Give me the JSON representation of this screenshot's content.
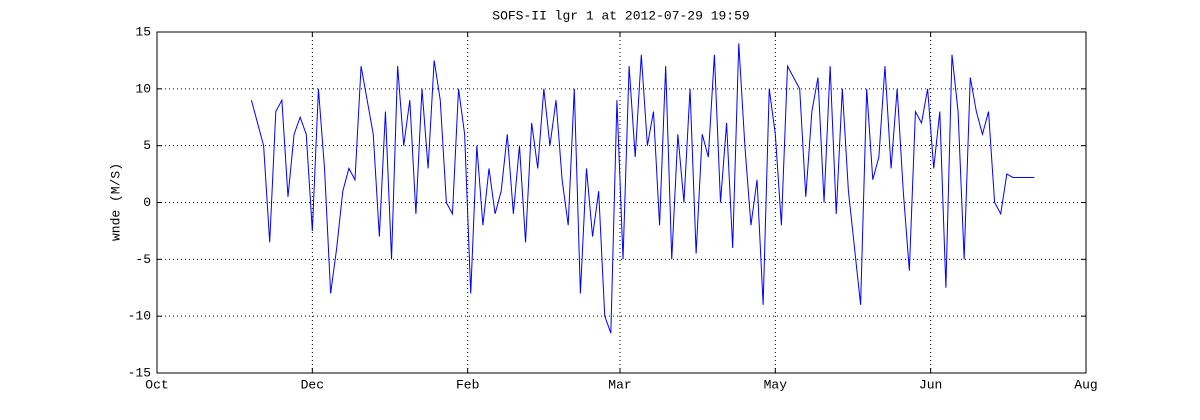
{
  "chart_data": {
    "type": "line",
    "title": "SOFS-II lgr 1 at 2012-07-29 19:59",
    "ylabel": "wnde (M/S)",
    "x": [
      31,
      33,
      35,
      37,
      39,
      41,
      43,
      45,
      47,
      49,
      51,
      53,
      55,
      57,
      59,
      61,
      63,
      65,
      67,
      69,
      71,
      73,
      75,
      77,
      79,
      81,
      83,
      85,
      87,
      89,
      91,
      93,
      95,
      97,
      99,
      101,
      103,
      105,
      107,
      109,
      111,
      113,
      115,
      117,
      119,
      121,
      123,
      125,
      127,
      129,
      131,
      133,
      135,
      137,
      139,
      141,
      143,
      145,
      147,
      149,
      151,
      153,
      155,
      157,
      159,
      161,
      163,
      165,
      167,
      169,
      171,
      173,
      175,
      177,
      179,
      181,
      183,
      185,
      187,
      189,
      191,
      193,
      195,
      197,
      199,
      201,
      203,
      205,
      207,
      209,
      211,
      213,
      215,
      217,
      219,
      221,
      223,
      225,
      227,
      229,
      231,
      233,
      235,
      237,
      239,
      241,
      243,
      245,
      247,
      249,
      251,
      253,
      255,
      257,
      259,
      261,
      263,
      265,
      267,
      269,
      271,
      273,
      275,
      277,
      279,
      281,
      288
    ],
    "series": [
      {
        "name": "wnde",
        "color": "#0000ff",
        "values": [
          9,
          7,
          5,
          -3.5,
          8,
          9,
          0.5,
          6,
          7.5,
          6,
          -2.5,
          10,
          3,
          -8,
          -4,
          1,
          3,
          2,
          12,
          9,
          6,
          -3,
          8,
          -5,
          12,
          5,
          9,
          -1,
          10,
          3,
          12.5,
          9,
          0,
          -1,
          10,
          6,
          -8,
          5,
          -2,
          3,
          -1,
          1,
          6,
          -1,
          5,
          -3.5,
          7,
          3,
          10,
          5,
          9,
          2,
          -2,
          10,
          -8,
          3,
          -3,
          1,
          -10,
          -11.5,
          9,
          -5,
          12,
          4,
          13,
          5,
          8,
          -2,
          12,
          -5,
          6,
          0,
          10,
          -4.5,
          6,
          4,
          13,
          0,
          7,
          -4,
          14,
          5,
          -2,
          2,
          -9,
          10,
          6,
          -2,
          12,
          11,
          10,
          0.5,
          8,
          11,
          0,
          12,
          -1,
          10,
          1,
          -4,
          -9,
          10,
          2,
          4,
          12,
          3,
          10,
          1,
          -6,
          8,
          7,
          10,
          3,
          8,
          -7.5,
          13,
          8,
          -5,
          11,
          8,
          6,
          8,
          0,
          -1,
          2.5,
          2.2,
          2.2
        ]
      }
    ],
    "xlim": [
      0,
      305
    ],
    "xticks": [
      {
        "value": 0,
        "label": "Oct"
      },
      {
        "value": 51,
        "label": "Dec"
      },
      {
        "value": 102,
        "label": "Feb"
      },
      {
        "value": 152,
        "label": "Mar"
      },
      {
        "value": 203,
        "label": "May"
      },
      {
        "value": 254,
        "label": "Jun"
      },
      {
        "value": 305,
        "label": "Aug"
      }
    ],
    "ylim": [
      -15,
      15
    ],
    "yticks": [
      -15,
      -10,
      -5,
      0,
      5,
      10,
      15
    ],
    "grid": true
  }
}
